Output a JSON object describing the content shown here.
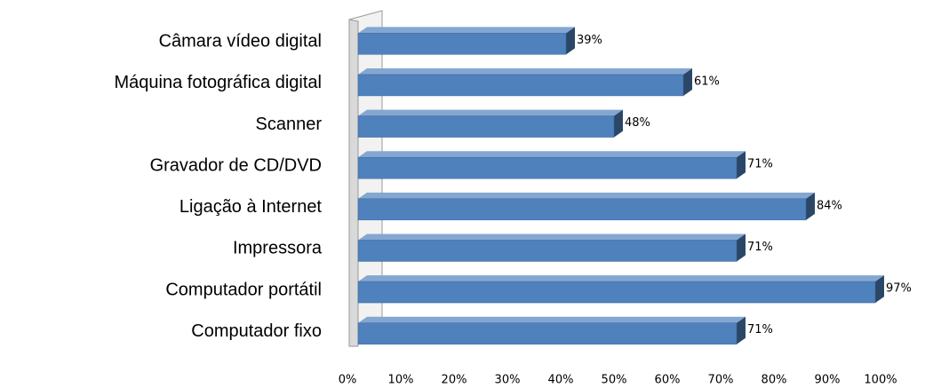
{
  "chart_data": {
    "type": "bar",
    "orientation": "horizontal",
    "categories": [
      "Câmara vídeo digital",
      "Máquina fotográfica digital",
      "Scanner",
      "Gravador de CD/DVD",
      "Ligação à Internet",
      "Impressora",
      "Computador portátil",
      "Computador fixo"
    ],
    "values": [
      39,
      61,
      48,
      71,
      84,
      71,
      97,
      71
    ],
    "value_labels": [
      "39%",
      "61%",
      "48%",
      "71%",
      "84%",
      "71%",
      "97%",
      "71%"
    ],
    "color": "#4f81bd",
    "xlim": [
      0,
      100
    ],
    "xticks": [
      {
        "value": 0,
        "label": "0%"
      },
      {
        "value": 10,
        "label": "10%"
      },
      {
        "value": 20,
        "label": "20%"
      },
      {
        "value": 30,
        "label": "30%"
      },
      {
        "value": 40,
        "label": "40%"
      },
      {
        "value": 50,
        "label": "50%"
      },
      {
        "value": 60,
        "label": "60%"
      },
      {
        "value": 70,
        "label": "70%"
      },
      {
        "value": 80,
        "label": "80%"
      },
      {
        "value": 90,
        "label": "90%"
      },
      {
        "value": 100,
        "label": "100%"
      }
    ],
    "grid": false
  }
}
